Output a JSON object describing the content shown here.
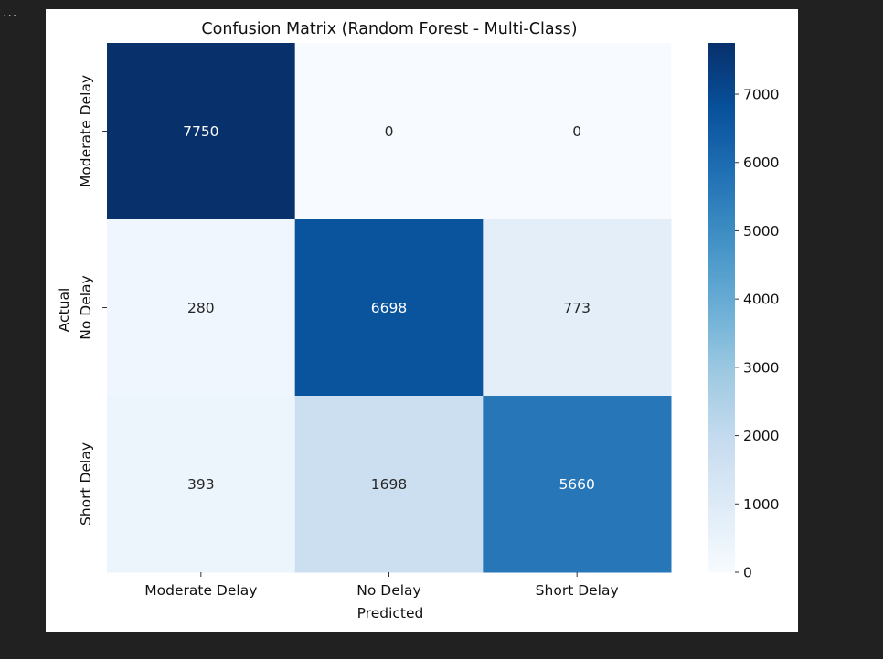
{
  "output_prompt": "...",
  "chart_data": {
    "type": "heatmap",
    "title": "Confusion Matrix (Random Forest - Multi-Class)",
    "xlabel": "Predicted",
    "ylabel": "Actual",
    "x_categories": [
      "Moderate Delay",
      "No Delay",
      "Short Delay"
    ],
    "y_categories": [
      "Moderate Delay",
      "No Delay",
      "Short Delay"
    ],
    "values": [
      [
        7750,
        0,
        0
      ],
      [
        280,
        6698,
        773
      ],
      [
        393,
        1698,
        5660
      ]
    ],
    "colorbar": {
      "min": 0,
      "max": 7750,
      "ticks": [
        0,
        1000,
        2000,
        3000,
        4000,
        5000,
        6000,
        7000
      ],
      "colormap": "Blues"
    }
  }
}
